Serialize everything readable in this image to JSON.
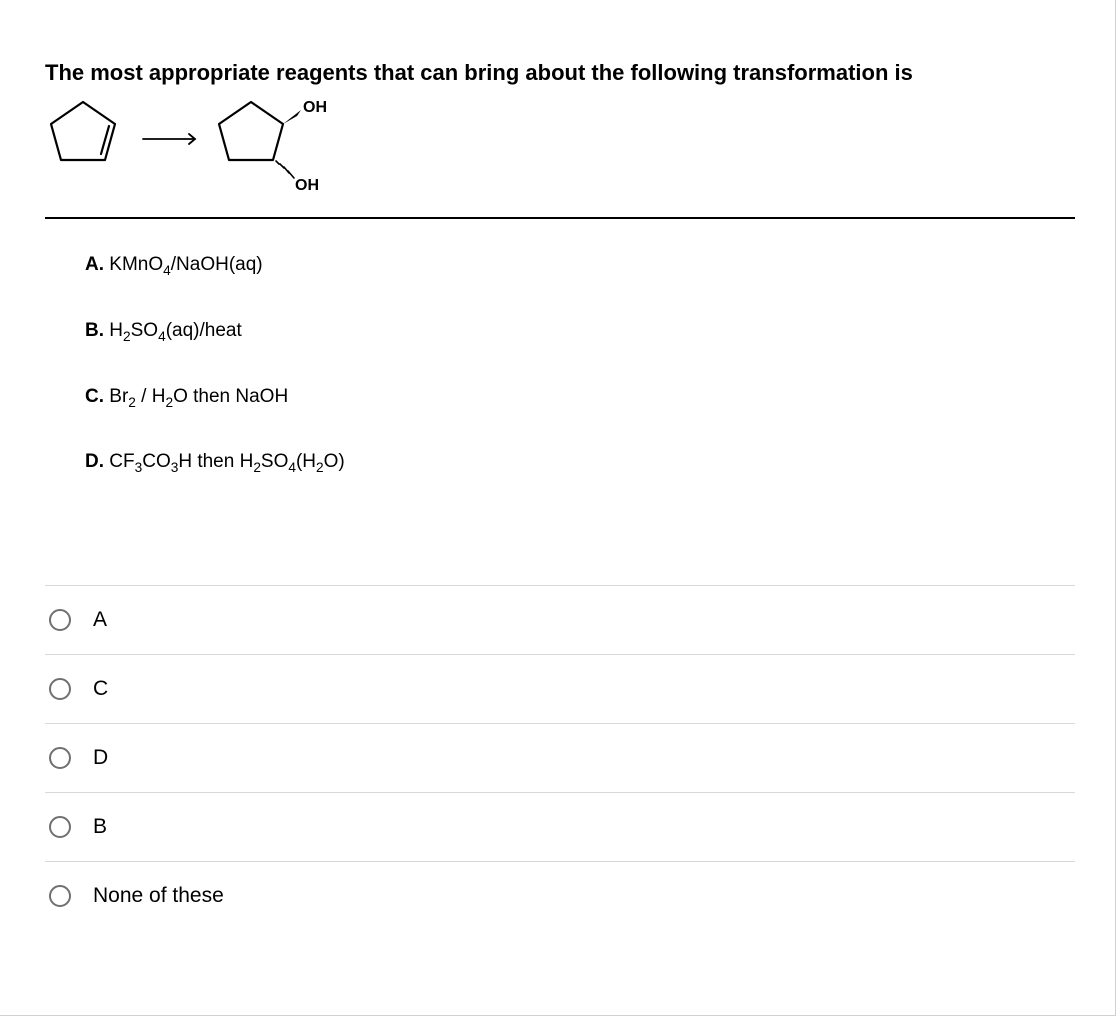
{
  "question": {
    "title": "The most appropriate reagents that can bring about the following transformation is",
    "diagram": {
      "label_top": "OH",
      "label_bottom": "OH",
      "shape": "cyclopentene_to_trans_diol",
      "stroke_color": "#000000",
      "stroke_width": 2.2
    }
  },
  "choices": [
    {
      "letter": "A.",
      "text_html": "KMnO<sub>4</sub>/NaOH(aq)"
    },
    {
      "letter": "B.",
      "text_html": "H<sub>2</sub>SO<sub>4</sub>(aq)/heat"
    },
    {
      "letter": "C.",
      "text_html": "Br<sub>2</sub> / H<sub>2</sub>O then NaOH"
    },
    {
      "letter": "D.",
      "text_html": "CF<sub>3</sub>CO<sub>3</sub>H then H<sub>2</sub>SO<sub>4</sub>(H<sub>2</sub>O)"
    }
  ],
  "answers": [
    {
      "label": "A"
    },
    {
      "label": "C"
    },
    {
      "label": "D"
    },
    {
      "label": "B"
    },
    {
      "label": "None of these"
    }
  ],
  "colors": {
    "text": "#000000",
    "border_light": "#d8d8d8",
    "border_dark": "#000000",
    "radio_border": "#707070",
    "background": "#ffffff"
  },
  "typography": {
    "title_fontsize": 22,
    "choice_fontsize": 19,
    "answer_fontsize": 21,
    "font_family": "Arial"
  }
}
